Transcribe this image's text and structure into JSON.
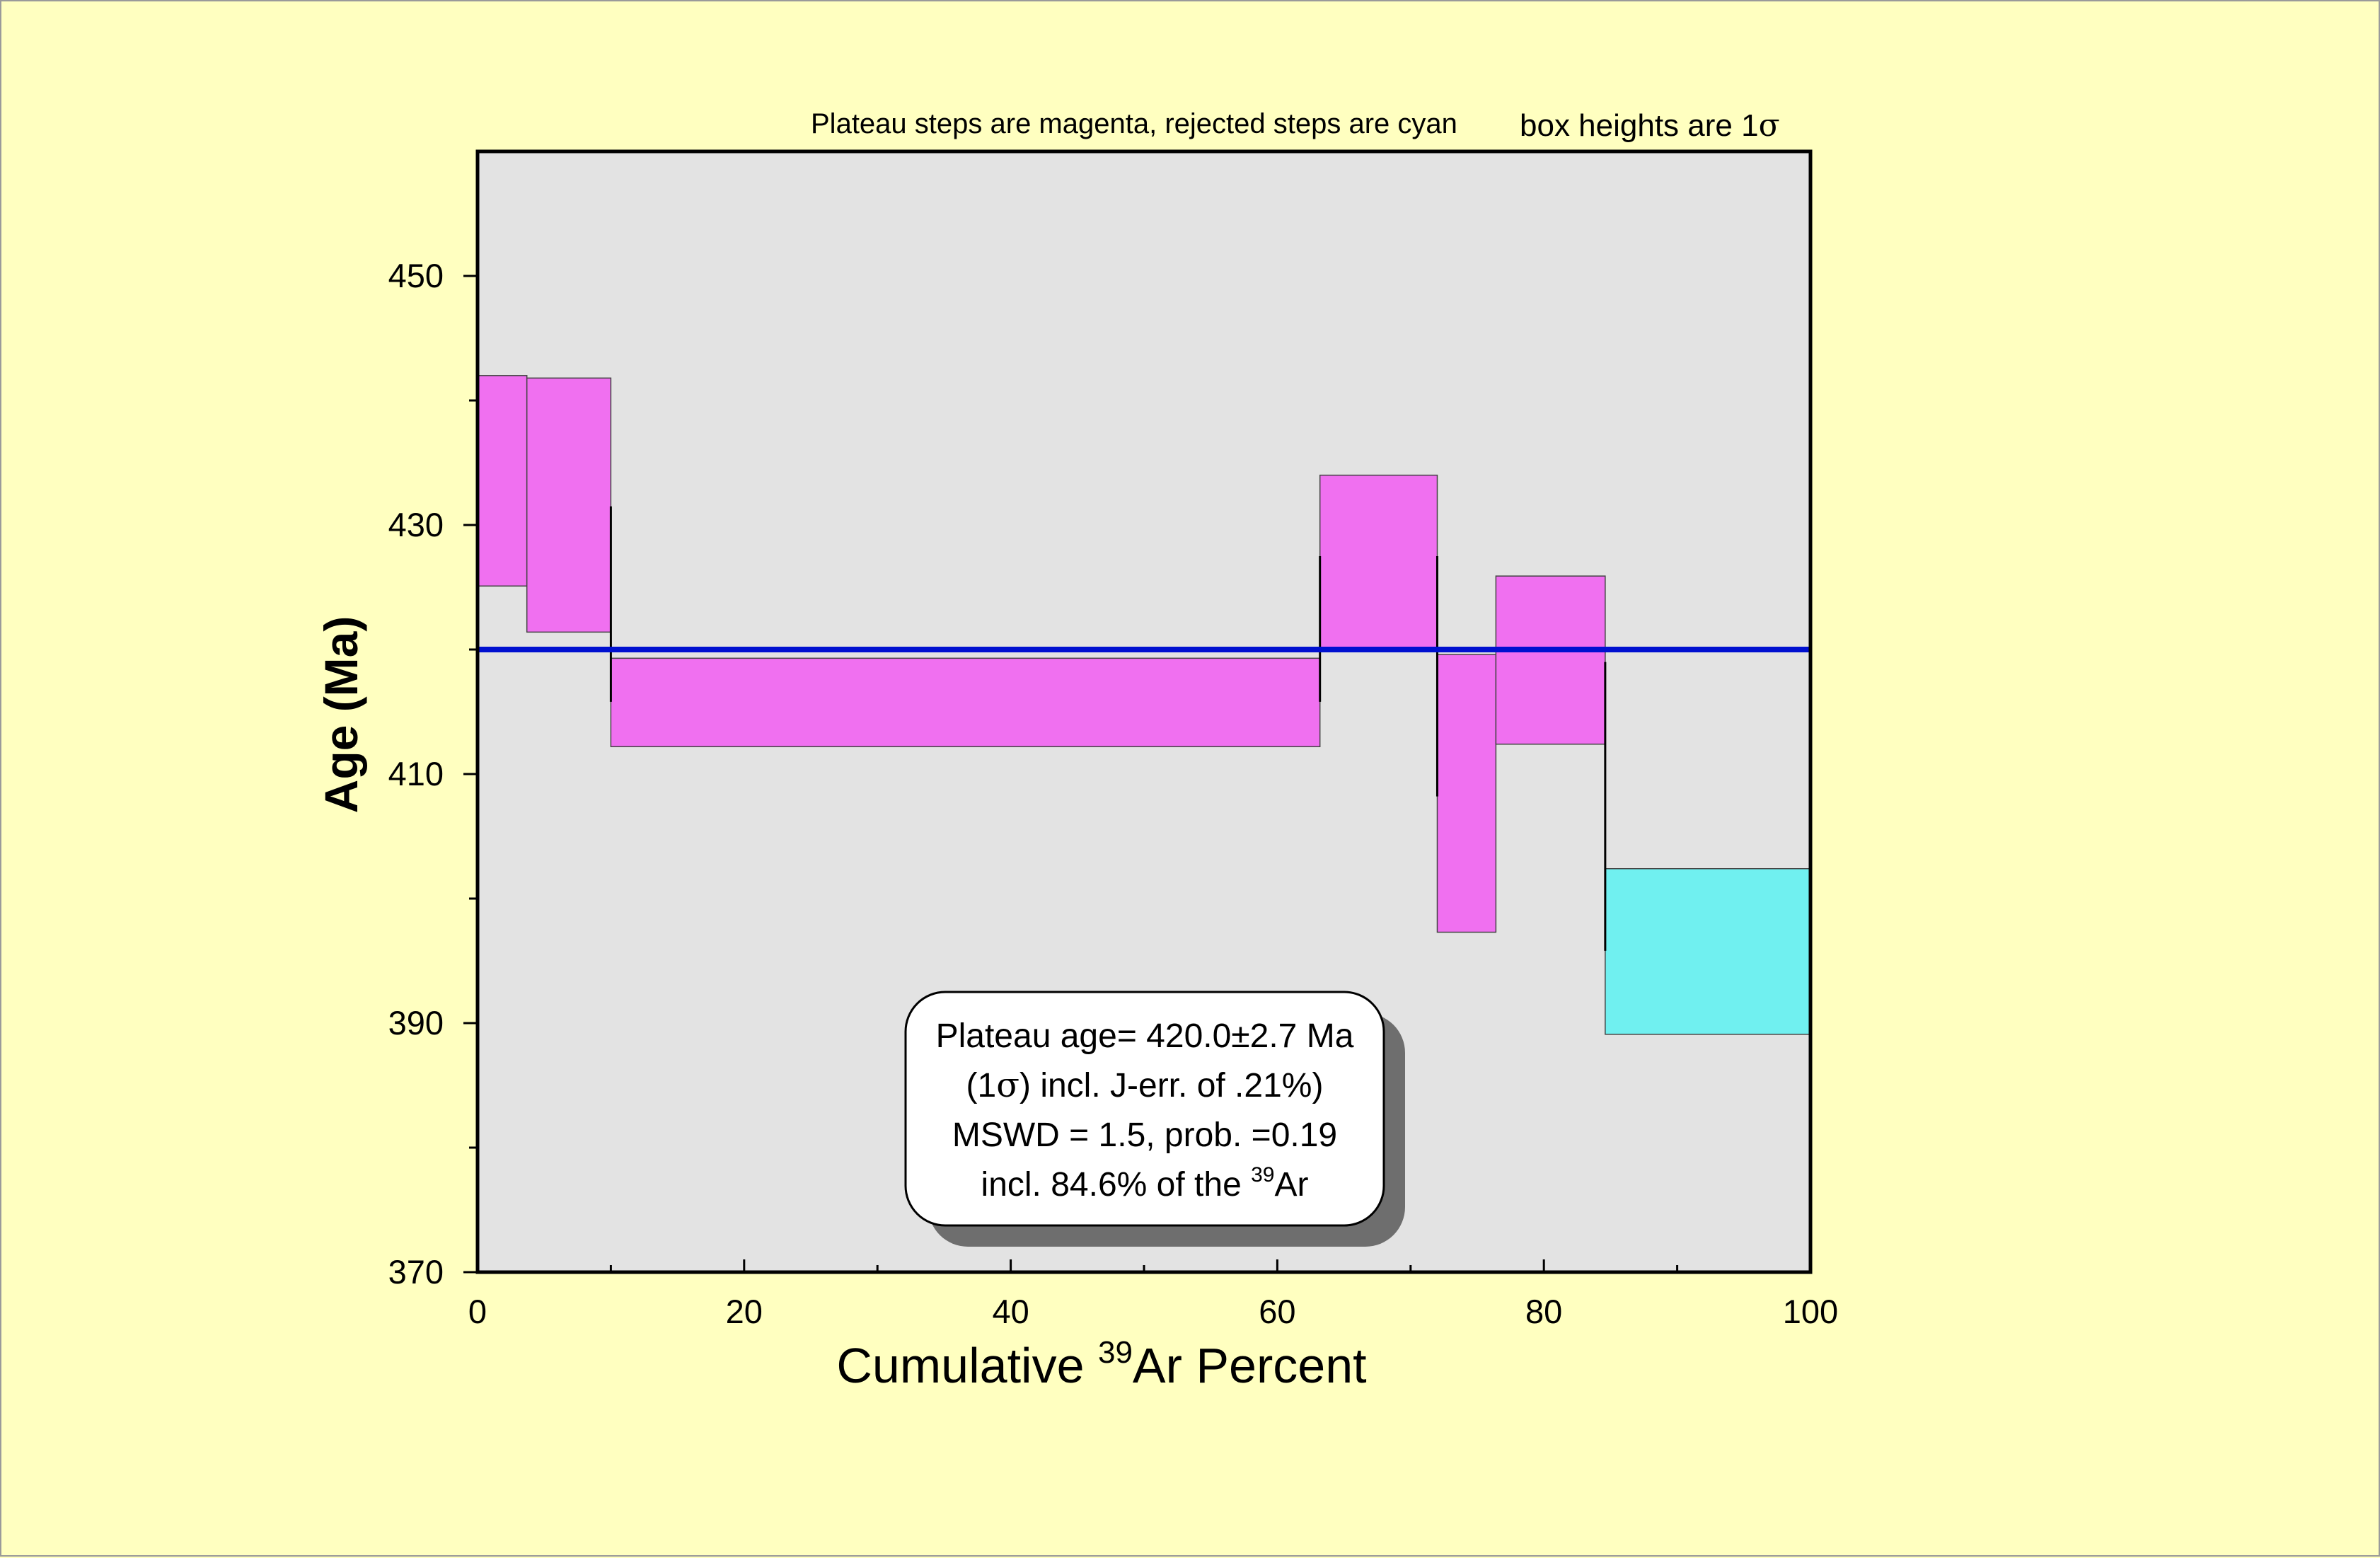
{
  "chart_data": {
    "type": "bar",
    "title": "",
    "xlabel": "Cumulative ³⁹Ar Percent",
    "ylabel": "Age (Ma)",
    "xlim": [
      0,
      100
    ],
    "ylim": [
      370,
      460
    ],
    "x_ticks_major": [
      0,
      20,
      40,
      60,
      80,
      100
    ],
    "x_ticks_minor": [
      10,
      30,
      50,
      70,
      90
    ],
    "y_ticks_major": [
      370,
      390,
      410,
      430,
      450
    ],
    "y_ticks_minor": [
      380,
      400,
      420,
      440
    ],
    "grid": false,
    "plot_background": "#e3e3e3",
    "page_background": "#ffffc0",
    "plateau_color": "#f070f0",
    "rejected_color": "#70f0f0",
    "plateau_line_color": "#0010d0",
    "annotation_top_left": "Plateau steps are magenta, rejected steps are cyan",
    "annotation_top_right_prefix": "box heights are 1",
    "annotation_top_right_symbol": "σ",
    "plateau_age": 420.0,
    "steps": [
      {
        "x_start": 0.0,
        "x_end": 3.7,
        "age_low": 425.1,
        "age_high": 442.0,
        "status": "plateau"
      },
      {
        "x_start": 3.7,
        "x_end": 10.0,
        "age_low": 421.4,
        "age_high": 441.8,
        "status": "plateau"
      },
      {
        "x_start": 10.0,
        "x_end": 63.2,
        "age_low": 412.2,
        "age_high": 419.3,
        "status": "plateau"
      },
      {
        "x_start": 63.2,
        "x_end": 72.0,
        "age_low": 420.0,
        "age_high": 434.0,
        "status": "plateau"
      },
      {
        "x_start": 72.0,
        "x_end": 76.4,
        "age_low": 397.3,
        "age_high": 419.6,
        "status": "plateau"
      },
      {
        "x_start": 76.4,
        "x_end": 84.6,
        "age_low": 412.4,
        "age_high": 425.9,
        "status": "plateau"
      },
      {
        "x_start": 84.6,
        "x_end": 100.0,
        "age_low": 389.1,
        "age_high": 402.4,
        "status": "rejected"
      }
    ],
    "connectors": [
      {
        "x": 10.0,
        "age_low": 415.8,
        "age_high": 431.5
      },
      {
        "x": 63.2,
        "age_low": 415.8,
        "age_high": 427.5
      },
      {
        "x": 72.0,
        "age_low": 408.2,
        "age_high": 427.5
      },
      {
        "x": 84.6,
        "age_low": 395.8,
        "age_high": 419.0
      }
    ],
    "summary_box": {
      "line1": "Plateau age= 420.0±2.7 Ma",
      "line2_open": "(1",
      "line2_symbol": "σ",
      "line2_rest": ") incl. J-err. of .21%)",
      "line3": "MSWD = 1.5, prob. =0.19",
      "line4_prefix": "incl. 84.6% of the ",
      "line4_sup": "39",
      "line4_suffix": "Ar"
    },
    "xlabel_prefix": "Cumulative ",
    "xlabel_sup": "39",
    "xlabel_suffix": "Ar Percent"
  }
}
